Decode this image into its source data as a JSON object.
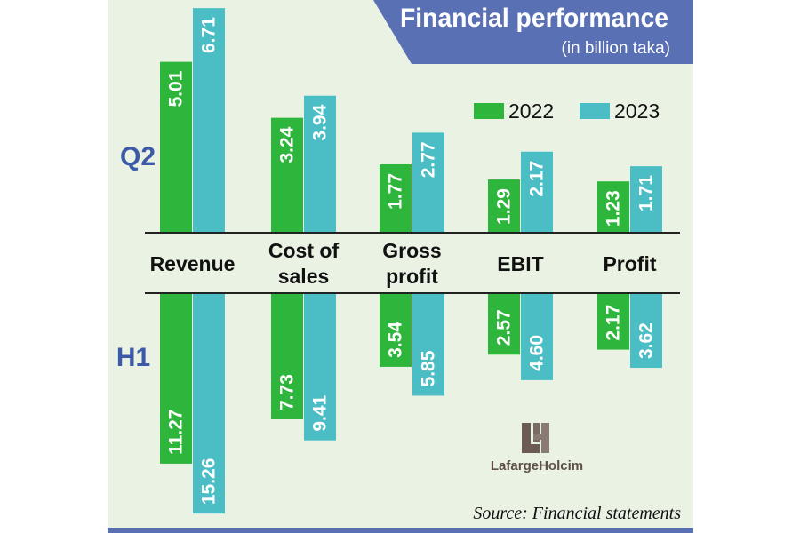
{
  "title": "Financial performance",
  "subtitle": "(in billion taka)",
  "source": "Source: Financial statements",
  "logo_text": "LafargeHolcim",
  "colors": {
    "s2022": "#2eb53b",
    "s2023": "#4bbdc5",
    "banner": "#5a70b5",
    "background": "#e9f2e3",
    "panel_label": "#3d5aa8"
  },
  "chart_data": {
    "type": "bar",
    "title": "Financial performance",
    "subtitle": "(in billion taka)",
    "categories": [
      "Revenue",
      "Cost of sales",
      "Gross profit",
      "EBIT",
      "Profit"
    ],
    "category_lines": [
      [
        "Revenue"
      ],
      [
        "Cost of",
        "sales"
      ],
      [
        "Gross",
        "profit"
      ],
      [
        "EBIT"
      ],
      [
        "Profit"
      ]
    ],
    "legend": {
      "position": "top-right",
      "entries": [
        "2022",
        "2023"
      ]
    },
    "panels": [
      {
        "name": "Q2",
        "direction": "up",
        "series": [
          {
            "name": "2022",
            "values": [
              5.01,
              3.24,
              1.77,
              1.29,
              1.23
            ],
            "labels": [
              "5.01",
              "3.24",
              "1.77",
              "1.29",
              "1.23"
            ]
          },
          {
            "name": "2023",
            "values": [
              6.71,
              3.94,
              2.77,
              2.17,
              1.71
            ],
            "labels": [
              "6.71",
              "3.94",
              "2.77",
              "2.17",
              "1.71"
            ]
          }
        ]
      },
      {
        "name": "H1",
        "direction": "down",
        "series": [
          {
            "name": "2022",
            "values": [
              11.27,
              7.73,
              3.54,
              2.57,
              2.17
            ],
            "labels": [
              "11.27",
              "7.73",
              "3.54",
              "2.57",
              "2.17"
            ]
          },
          {
            "name": "2023",
            "values": [
              15.26,
              9.41,
              5.85,
              4.6,
              3.62
            ],
            "labels": [
              "15.26",
              "9.41",
              "5.85",
              "4.60",
              "3.62"
            ]
          }
        ]
      }
    ],
    "source": "Source: Financial statements"
  }
}
